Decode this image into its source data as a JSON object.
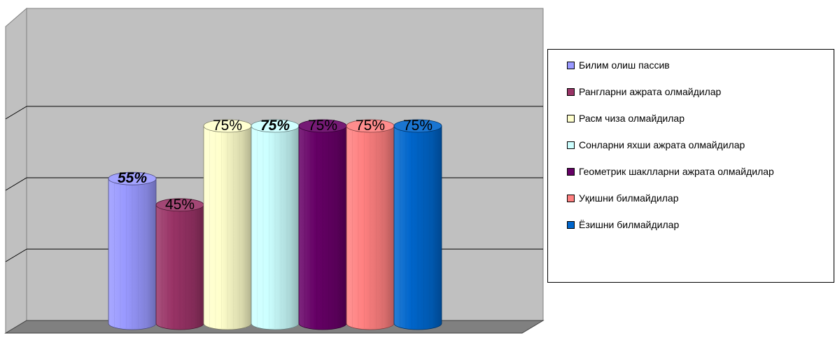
{
  "chart_data": {
    "type": "bar",
    "style": "3d-cylinder",
    "grid": true,
    "legend_position": "right",
    "ylim": [
      0,
      100
    ],
    "series": [
      {
        "name": "Билим олиш пассив",
        "value": 55,
        "label": "55%",
        "color": "#9999ff",
        "bold_label": true
      },
      {
        "name": "Рангларни ажрата олмайдилар",
        "value": 45,
        "label": "45%",
        "color": "#993366",
        "bold_label": false
      },
      {
        "name": "Расм чиза олмайдилар",
        "value": 75,
        "label": "75%",
        "color": "#ffffcc",
        "bold_label": false
      },
      {
        "name": "Сонларни яхши ажрата олмайдилар",
        "value": 75,
        "label": "75%",
        "color": "#ccffff",
        "bold_label": true
      },
      {
        "name": "Геометрик шаклларни ажрата олмайдилар",
        "value": 75,
        "label": "75%",
        "color": "#660066",
        "bold_label": false
      },
      {
        "name": "Уқишни билмайдилар",
        "value": 75,
        "label": "75%",
        "color": "#ff8080",
        "bold_label": false
      },
      {
        "name": "Ёзишни билмайдилар",
        "value": 75,
        "label": "75%",
        "color": "#0066cc",
        "bold_label": false
      }
    ]
  }
}
